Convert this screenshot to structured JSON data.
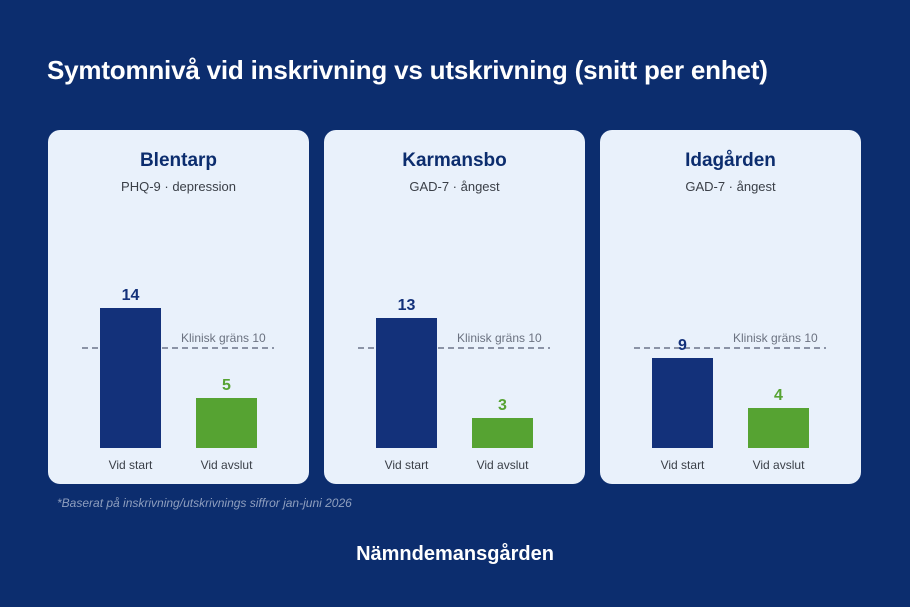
{
  "title": "Symtomnivå vid inskrivning vs utskrivning (snitt per enhet)",
  "footnote": "*Baserat på inskrivning/utskrivnings siffror jan-juni 2026",
  "brand": "Nämndemansgården",
  "colors": {
    "start": "#13317a",
    "end": "#56a332",
    "threshold": "#8b93a6",
    "background": "#0c2d6e",
    "panel": "#e9f1fb"
  },
  "chart_data": [
    {
      "type": "bar",
      "title": "Blentarp",
      "subtitle": "PHQ-9 · depression",
      "categories": [
        "Vid start",
        "Vid avslut"
      ],
      "values": [
        14,
        5
      ],
      "threshold": {
        "value": 10,
        "label": "Klinisk gräns 10"
      },
      "legend": "none",
      "grid": false
    },
    {
      "type": "bar",
      "title": "Karmansbo",
      "subtitle": "GAD-7 · ångest",
      "categories": [
        "Vid start",
        "Vid avslut"
      ],
      "values": [
        13,
        3
      ],
      "threshold": {
        "value": 10,
        "label": "Klinisk gräns 10"
      },
      "legend": "none",
      "grid": false
    },
    {
      "type": "bar",
      "title": "Idagården",
      "subtitle": "GAD-7 · ångest",
      "categories": [
        "Vid start",
        "Vid avslut"
      ],
      "values": [
        9,
        4
      ],
      "threshold": {
        "value": 10,
        "label": "Klinisk gräns 10"
      },
      "legend": "none",
      "grid": false
    }
  ]
}
